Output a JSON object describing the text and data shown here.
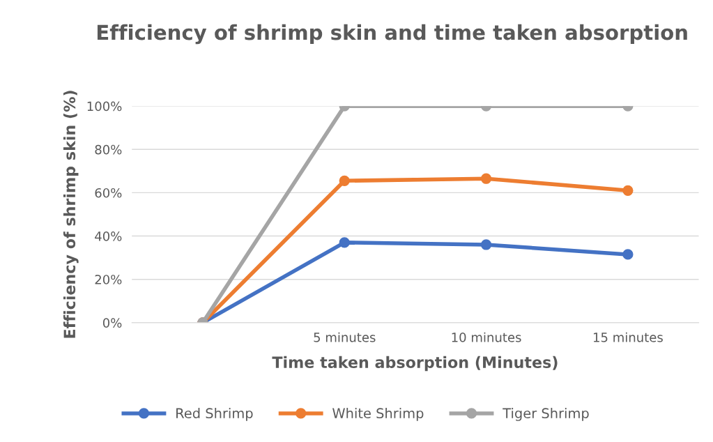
{
  "chart_data": {
    "type": "line",
    "title": "Efficiency of shrimp skin and time taken absorption",
    "xlabel": "Time taken absorption (Minutes)",
    "ylabel": "Efficiency of shrimp skin (%)",
    "categories": [
      null,
      "5 minutes",
      "10 minutes",
      "15 minutes"
    ],
    "series": [
      {
        "name": "Red Shrimp",
        "color": "#4472c4",
        "values": [
          0,
          37,
          36,
          31.5
        ]
      },
      {
        "name": "White Shrimp",
        "color": "#ed7d31",
        "values": [
          0,
          65.5,
          66.5,
          61
        ]
      },
      {
        "name": "Tiger Shrimp",
        "color": "#a5a5a5",
        "values": [
          0,
          100,
          100,
          100
        ]
      }
    ],
    "ylim": [
      0,
      100
    ],
    "yticks": [
      {
        "value": 0,
        "label": "0%"
      },
      {
        "value": 20,
        "label": "20%"
      },
      {
        "value": 40,
        "label": "40%"
      },
      {
        "value": 60,
        "label": "60%"
      },
      {
        "value": 80,
        "label": "80%"
      },
      {
        "value": 100,
        "label": "100%"
      }
    ],
    "grid": "y",
    "legend": "bottom",
    "marker": "circle",
    "line_style": "solid"
  }
}
